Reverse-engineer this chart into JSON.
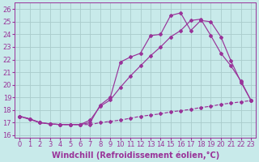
{
  "bg_color": "#c8eaea",
  "line_color": "#993399",
  "grid_color": "#aacccc",
  "xlabel": "Windchill (Refroidissement éolien,°C)",
  "xlabel_fontsize": 7.0,
  "tick_fontsize": 6.0,
  "xlim": [
    -0.5,
    23.5
  ],
  "ylim": [
    15.8,
    26.5
  ],
  "yticks": [
    16,
    17,
    18,
    19,
    20,
    21,
    22,
    23,
    24,
    25,
    26
  ],
  "xticks": [
    0,
    1,
    2,
    3,
    4,
    5,
    6,
    7,
    8,
    9,
    10,
    11,
    12,
    13,
    14,
    15,
    16,
    17,
    18,
    19,
    20,
    21,
    22,
    23
  ],
  "line_dashed_x": [
    0,
    1,
    2,
    3,
    4,
    5,
    6,
    7,
    8,
    9,
    10,
    11,
    12,
    13,
    14,
    15,
    16,
    17,
    18,
    19,
    20,
    21,
    22,
    23
  ],
  "line_dashed_y": [
    17.5,
    17.3,
    17.0,
    16.9,
    16.85,
    16.85,
    16.85,
    16.85,
    17.0,
    17.1,
    17.2,
    17.35,
    17.5,
    17.6,
    17.7,
    17.85,
    17.95,
    18.05,
    18.2,
    18.3,
    18.45,
    18.55,
    18.65,
    18.75
  ],
  "line_jagged_x": [
    0,
    1,
    2,
    3,
    4,
    5,
    6,
    7,
    8,
    9,
    10,
    11,
    12,
    13,
    14,
    15,
    16,
    17,
    18,
    19,
    20,
    21,
    22,
    23
  ],
  "line_jagged_y": [
    17.5,
    17.3,
    17.0,
    16.9,
    16.85,
    16.85,
    16.85,
    17.0,
    18.4,
    19.0,
    21.8,
    22.2,
    22.5,
    23.9,
    24.0,
    25.5,
    25.7,
    24.3,
    25.1,
    25.0,
    23.8,
    21.9,
    20.2,
    18.75
  ],
  "line_diag_x": [
    0,
    2,
    3,
    4,
    5,
    6,
    7,
    8,
    9,
    10,
    11,
    12,
    13,
    14,
    15,
    16,
    17,
    18,
    19,
    20,
    21,
    22,
    23
  ],
  "line_diag_y": [
    17.5,
    17.0,
    16.9,
    16.85,
    16.85,
    16.85,
    17.2,
    18.3,
    18.8,
    19.8,
    20.7,
    21.5,
    22.3,
    23.0,
    23.8,
    24.3,
    25.1,
    25.2,
    23.9,
    22.5,
    21.5,
    20.3,
    18.75
  ]
}
